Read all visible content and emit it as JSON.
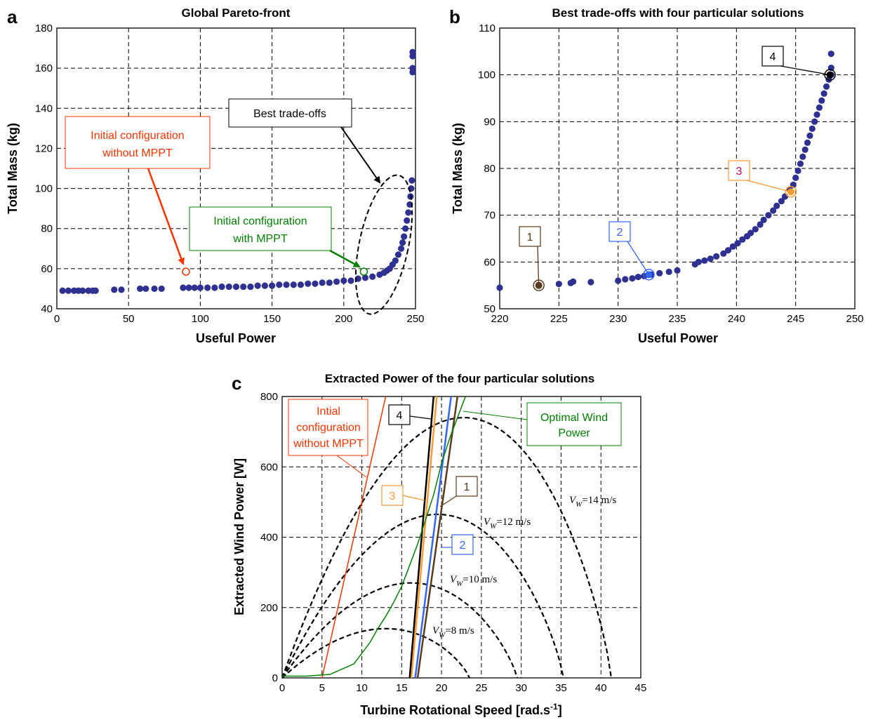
{
  "panels": {
    "a": "a",
    "b": "b",
    "c": "c"
  },
  "colors": {
    "points": "#2e3192",
    "red": "#ff3300",
    "green": "#008000",
    "brown": "#5a3a1a",
    "blue": "#3366ff",
    "orange": "#ff9933",
    "black": "#000000"
  },
  "annotations_a": {
    "best_tradeoffs": "Best trade-offs",
    "init_no_mppt_1": "Initial configuration",
    "init_no_mppt_2": "without MPPT",
    "init_mppt_1": "Initial configuration",
    "init_mppt_2": "with MPPT"
  },
  "annotations_b": {
    "labels": [
      "1",
      "2",
      "3",
      "4"
    ]
  },
  "annotations_c": {
    "init_1": "Intial",
    "init_2": "configuration",
    "init_3": "without MPPT",
    "opt_1": "Optimal Wind",
    "opt_2": "Power",
    "labels": [
      "1",
      "2",
      "3",
      "4"
    ],
    "vw_8": "=8 m/s",
    "vw_10": "=10 m/s",
    "vw_12": "=12 m/s",
    "vw_14": "=14 m/s",
    "vw_symbol": "V",
    "vw_sub": "W"
  },
  "chart_data": [
    {
      "type": "scatter",
      "title": "Global Pareto-front",
      "xlabel": "Useful Power",
      "ylabel": "Total Mass (kg)",
      "xlim": [
        0,
        250
      ],
      "ylim": [
        40,
        180
      ],
      "xticks": [
        0,
        50,
        100,
        150,
        200,
        250
      ],
      "yticks": [
        40,
        60,
        80,
        100,
        120,
        140,
        160,
        180
      ],
      "grid": true,
      "series": [
        {
          "x": [
            4,
            8,
            12,
            15,
            18,
            22,
            25,
            27,
            40,
            45,
            58,
            62,
            68,
            73,
            88,
            92,
            96,
            100,
            105,
            110,
            115,
            120,
            125,
            130,
            135,
            140,
            145,
            150,
            155,
            160,
            165,
            170,
            175,
            180,
            185,
            190,
            195,
            200,
            205,
            210,
            215,
            220,
            225,
            228,
            230,
            232,
            234,
            236,
            238,
            240,
            241,
            242,
            243,
            244,
            245,
            246,
            246.5,
            247,
            247.5,
            248,
            248,
            248,
            248
          ],
          "y": [
            49,
            49,
            49,
            49,
            49,
            49,
            49,
            49,
            49.5,
            49.5,
            50,
            50,
            50,
            50,
            50.5,
            50.5,
            50.5,
            50.5,
            50.5,
            50.5,
            51,
            51,
            51,
            51,
            51,
            51.5,
            51.5,
            51.5,
            52,
            52,
            52,
            52,
            52.5,
            52.5,
            53,
            53,
            53.5,
            54,
            54,
            55,
            55.5,
            56,
            57,
            58,
            59,
            60,
            62,
            64,
            67,
            70,
            73,
            76,
            80,
            84,
            88,
            92,
            96,
            100,
            104,
            158,
            160,
            166,
            168
          ]
        }
      ],
      "markers": [
        {
          "name": "Initial configuration without MPPT",
          "x": 90,
          "y": 58.5
        },
        {
          "name": "Initial configuration with MPPT",
          "x": 214,
          "y": 58.5
        }
      ]
    },
    {
      "type": "scatter",
      "title": "Best trade-offs with four particular solutions",
      "xlabel": "Useful Power",
      "ylabel": "Total Mass (kg)",
      "xlim": [
        220,
        250
      ],
      "ylim": [
        50,
        110
      ],
      "xticks": [
        220,
        225,
        230,
        235,
        240,
        245,
        250
      ],
      "yticks": [
        50,
        60,
        70,
        80,
        90,
        100,
        110
      ],
      "grid": true,
      "series": [
        {
          "x": [
            220.0,
            223.3,
            225.0,
            226.0,
            226.2,
            227.7,
            230.0,
            230.6,
            231.2,
            231.7,
            232.2,
            232.8,
            233.5,
            234.3,
            235.0,
            236.5,
            236.8,
            237.3,
            237.8,
            238.3,
            238.9,
            239.3,
            239.7,
            240.1,
            240.5,
            240.9,
            241.2,
            241.6,
            242.0,
            242.3,
            242.7,
            243.1,
            243.4,
            243.8,
            244.1,
            244.5,
            244.8,
            245.0,
            245.2,
            245.4,
            245.6,
            245.8,
            246.0,
            246.2,
            246.4,
            246.6,
            246.8,
            247.0,
            247.2,
            247.4,
            247.6,
            247.8,
            248.0,
            248.0,
            248.0
          ],
          "y": [
            54.5,
            55.0,
            55.3,
            55.5,
            55.8,
            55.7,
            56.0,
            56.3,
            56.5,
            56.8,
            57.0,
            57.3,
            57.6,
            57.9,
            58.2,
            59.5,
            60.0,
            60.3,
            60.7,
            61.2,
            61.8,
            62.5,
            63.3,
            64.0,
            64.8,
            65.5,
            66.2,
            67.0,
            68.0,
            69.0,
            70.0,
            71.0,
            72.0,
            73.0,
            74.0,
            75.5,
            76.5,
            78.0,
            79.5,
            81.0,
            82.5,
            84.0,
            85.5,
            87.0,
            88.5,
            90.0,
            91.5,
            93.0,
            94.5,
            96.0,
            97.5,
            99.0,
            100.0,
            101.5,
            104.5
          ]
        }
      ],
      "solutions": [
        {
          "label": "1",
          "x": 223.3,
          "y": 55.0
        },
        {
          "label": "2",
          "x": 232.6,
          "y": 57.3
        },
        {
          "label": "3",
          "x": 244.6,
          "y": 75.0
        },
        {
          "label": "4",
          "x": 247.9,
          "y": 100.0
        }
      ]
    },
    {
      "type": "line",
      "title": "Extracted Power of the four particular solutions",
      "xlabel": "Turbine Rotational Speed [rad.s-1]",
      "ylabel": "Extracted Wind Power [W]",
      "xlim": [
        0,
        45
      ],
      "ylim": [
        0,
        800
      ],
      "xticks": [
        0,
        5,
        10,
        15,
        20,
        25,
        30,
        35,
        40,
        45
      ],
      "yticks": [
        0,
        200,
        400,
        600,
        800
      ],
      "grid": true,
      "wind_curves": [
        {
          "name": "V_W=8 m/s",
          "peak_x": 13.0,
          "peak_y": 140,
          "zero_x": 23.5
        },
        {
          "name": "V_W=10 m/s",
          "peak_x": 16.2,
          "peak_y": 270,
          "zero_x": 29.5
        },
        {
          "name": "V_W=12 m/s",
          "peak_x": 19.5,
          "peak_y": 465,
          "zero_x": 35.3
        },
        {
          "name": "V_W=14 m/s",
          "peak_x": 22.8,
          "peak_y": 740,
          "zero_x": 41.3
        }
      ],
      "series": [
        {
          "name": "Intial configuration without MPPT",
          "x": [
            5.0,
            13.0
          ],
          "y": [
            0,
            800
          ]
        },
        {
          "name": "1",
          "x": [
            17.0,
            22.0
          ],
          "y": [
            0,
            800
          ]
        },
        {
          "name": "2",
          "x": [
            16.7,
            21.2
          ],
          "y": [
            0,
            800
          ]
        },
        {
          "name": "3",
          "x": [
            16.2,
            19.4
          ],
          "y": [
            0,
            800
          ]
        },
        {
          "name": "4",
          "x": [
            16.0,
            19.0
          ],
          "y": [
            0,
            800
          ]
        },
        {
          "name": "Optimal Wind Power",
          "x": [
            0,
            3,
            6,
            9,
            10,
            11,
            12,
            13,
            14,
            15,
            16,
            17,
            18,
            19,
            20,
            21,
            22,
            23
          ],
          "y": [
            5,
            5,
            10,
            40,
            70,
            100,
            140,
            175,
            215,
            260,
            320,
            380,
            450,
            520,
            610,
            680,
            740,
            800
          ]
        }
      ]
    }
  ]
}
